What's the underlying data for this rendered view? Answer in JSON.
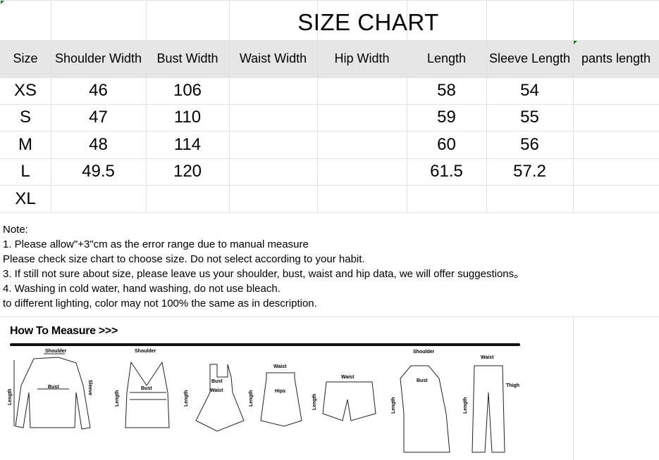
{
  "title": "SIZE CHART",
  "table": {
    "headers": [
      "Size",
      "Shoulder Width",
      "Bust Width",
      "Waist Width",
      "Hip Width",
      "Length",
      "Sleeve Length",
      "pants length"
    ],
    "rows": [
      [
        "XS",
        "46",
        "106",
        "",
        "",
        "58",
        "54",
        ""
      ],
      [
        "S",
        "47",
        "110",
        "",
        "",
        "59",
        "55",
        ""
      ],
      [
        "M",
        "48",
        "114",
        "",
        "",
        "60",
        "56",
        ""
      ],
      [
        "L",
        "49.5",
        "120",
        "",
        "",
        "61.5",
        "57.2",
        ""
      ],
      [
        "XL",
        "",
        "",
        "",
        "",
        "",
        "",
        ""
      ]
    ]
  },
  "notes": [
    "Note:",
    "1. Please allow\"+3\"cm as the error range due to manual measure",
    "Please check size chart to choose size. Do not select according to your habit.",
    "3. If still not sure about size, please leave us your shoulder, bust, waist and hip data, we will offer suggestions。",
    "4. Washing in cold water, hand washing, do not use bleach.",
    "to different lighting, color may not 100% the same as in description."
  ],
  "how_to_measure": {
    "title": "How To Measure >>>",
    "labels": {
      "shoulder": "Shoulder",
      "bust": "Bust",
      "sleeve": "Sleeve",
      "length": "Length",
      "waist": "Waist",
      "hips": "Hips",
      "thigh": "Thigh"
    }
  }
}
